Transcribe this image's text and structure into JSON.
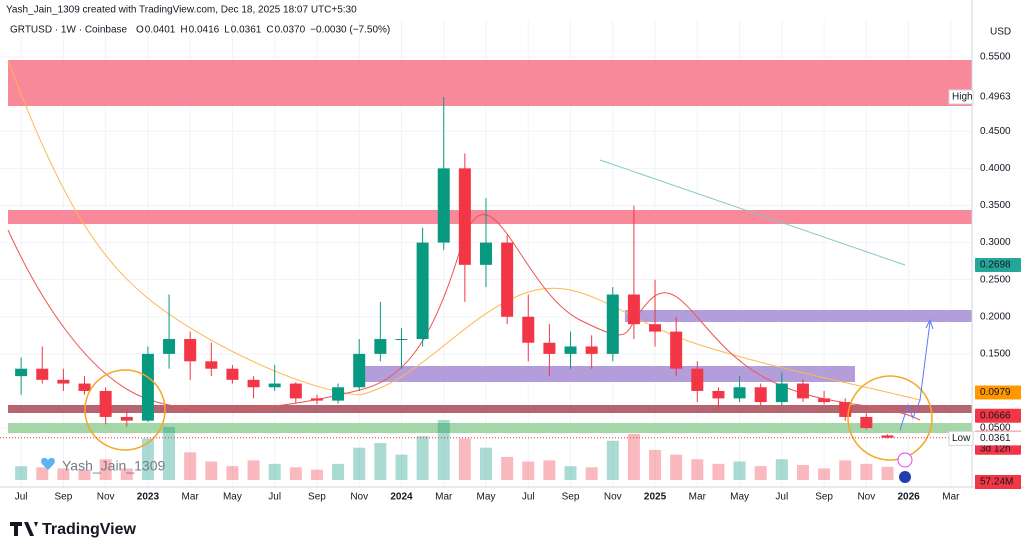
{
  "chart_data": {
    "type": "candlestick",
    "author_line": "Yash_Jain_1309 created with TradingView.com, Dec 18, 2025 18:07 UTC+5:30",
    "symbol": "GRTUSD · 1W · Coinbase",
    "ohlc": [
      {
        "prefix": "O",
        "label": "0.0401"
      },
      {
        "prefix": "H",
        "label": "0.0416"
      },
      {
        "prefix": "L",
        "label": "0.0361"
      },
      {
        "prefix": "C",
        "label": "0.0370"
      }
    ],
    "change": "−0.0030 (−7.50%)",
    "currency": "USD",
    "watermark": "Yash_Jain_1309",
    "brand": "TradingView",
    "up_color": "#089981",
    "down_color": "#f23645",
    "x": [
      "2022-07",
      "2022-08",
      "2022-09",
      "2022-10",
      "2022-11",
      "2022-12",
      "2023-01",
      "2023-02",
      "2023-03",
      "2023-04",
      "2023-05",
      "2023-06",
      "2023-07",
      "2023-08",
      "2023-09",
      "2023-10",
      "2023-11",
      "2023-12",
      "2024-01",
      "2024-02",
      "2024-03",
      "2024-04",
      "2024-05",
      "2024-06",
      "2024-07",
      "2024-08",
      "2024-09",
      "2024-10",
      "2024-11",
      "2024-12",
      "2025-01",
      "2025-02",
      "2025-03",
      "2025-04",
      "2025-05",
      "2025-06",
      "2025-07",
      "2025-08",
      "2025-09",
      "2025-10",
      "2025-11",
      "2025-12"
    ],
    "open": [
      0.12,
      0.13,
      0.115,
      0.11,
      0.1,
      0.065,
      0.06,
      0.15,
      0.17,
      0.14,
      0.13,
      0.115,
      0.105,
      0.11,
      0.09,
      0.087,
      0.105,
      0.15,
      0.17,
      0.17,
      0.3,
      0.4,
      0.27,
      0.3,
      0.2,
      0.165,
      0.15,
      0.16,
      0.15,
      0.23,
      0.19,
      0.18,
      0.13,
      0.1,
      0.09,
      0.105,
      0.085,
      0.11,
      0.09,
      0.085,
      0.065,
      0.0401
    ],
    "high": [
      0.145,
      0.16,
      0.13,
      0.12,
      0.105,
      0.075,
      0.16,
      0.23,
      0.18,
      0.165,
      0.135,
      0.12,
      0.135,
      0.112,
      0.095,
      0.11,
      0.17,
      0.22,
      0.185,
      0.32,
      0.4963,
      0.42,
      0.36,
      0.31,
      0.23,
      0.19,
      0.18,
      0.175,
      0.24,
      0.35,
      0.25,
      0.2,
      0.14,
      0.105,
      0.12,
      0.11,
      0.125,
      0.115,
      0.1,
      0.09,
      0.07,
      0.0416
    ],
    "low": [
      0.095,
      0.11,
      0.1,
      0.095,
      0.055,
      0.052,
      0.058,
      0.13,
      0.115,
      0.12,
      0.11,
      0.09,
      0.1,
      0.083,
      0.082,
      0.083,
      0.1,
      0.14,
      0.13,
      0.16,
      0.29,
      0.22,
      0.24,
      0.19,
      0.14,
      0.12,
      0.13,
      0.13,
      0.14,
      0.17,
      0.16,
      0.12,
      0.085,
      0.075,
      0.085,
      0.08,
      0.08,
      0.085,
      0.082,
      0.06,
      0.048,
      0.0361
    ],
    "close": [
      0.13,
      0.115,
      0.11,
      0.1,
      0.065,
      0.06,
      0.15,
      0.17,
      0.14,
      0.13,
      0.115,
      0.105,
      0.11,
      0.09,
      0.087,
      0.105,
      0.15,
      0.17,
      0.17,
      0.3,
      0.4,
      0.27,
      0.3,
      0.2,
      0.165,
      0.15,
      0.16,
      0.15,
      0.23,
      0.19,
      0.18,
      0.13,
      0.1,
      0.09,
      0.105,
      0.085,
      0.11,
      0.09,
      0.085,
      0.065,
      0.05,
      0.037
    ],
    "volume": [
      60,
      55,
      50,
      45,
      90,
      50,
      180,
      230,
      120,
      80,
      60,
      85,
      70,
      55,
      45,
      70,
      140,
      160,
      110,
      190,
      260,
      180,
      140,
      100,
      80,
      85,
      60,
      55,
      170,
      200,
      130,
      110,
      90,
      70,
      80,
      60,
      90,
      65,
      50,
      85,
      70,
      57.24
    ],
    "xlim": [
      "2022-06",
      "2026-04"
    ],
    "xticks": [
      {
        "value": "2022-07",
        "label": "Jul"
      },
      {
        "value": "2022-09",
        "label": "Sep"
      },
      {
        "value": "2022-11",
        "label": "Nov"
      },
      {
        "value": "2023-01",
        "label": "2023"
      },
      {
        "value": "2023-03",
        "label": "Mar"
      },
      {
        "value": "2023-05",
        "label": "May"
      },
      {
        "value": "2023-07",
        "label": "Jul"
      },
      {
        "value": "2023-09",
        "label": "Sep"
      },
      {
        "value": "2023-11",
        "label": "Nov"
      },
      {
        "value": "2024-01",
        "label": "2024"
      },
      {
        "value": "2024-03",
        "label": "Mar"
      },
      {
        "value": "2024-05",
        "label": "May"
      },
      {
        "value": "2024-07",
        "label": "Jul"
      },
      {
        "value": "2024-09",
        "label": "Sep"
      },
      {
        "value": "2024-11",
        "label": "Nov"
      },
      {
        "value": "2025-01",
        "label": "2025"
      },
      {
        "value": "2025-03",
        "label": "Mar"
      },
      {
        "value": "2025-05",
        "label": "May"
      },
      {
        "value": "2025-07",
        "label": "Jul"
      },
      {
        "value": "2025-09",
        "label": "Sep"
      },
      {
        "value": "2025-11",
        "label": "Nov"
      },
      {
        "value": "2026-01",
        "label": "2026"
      },
      {
        "value": "2026-03",
        "label": "Mar"
      }
    ],
    "ylim": [
      -0.02,
      0.6
    ],
    "yticks": [
      {
        "value": 0.55,
        "label": "0.5500"
      },
      {
        "value": 0.45,
        "label": "0.4500"
      },
      {
        "value": 0.4,
        "label": "0.4000"
      },
      {
        "value": 0.35,
        "label": "0.3500"
      },
      {
        "value": 0.3,
        "label": "0.3000"
      },
      {
        "value": 0.25,
        "label": "0.2500"
      },
      {
        "value": 0.2,
        "label": "0.2000"
      },
      {
        "value": 0.15,
        "label": "0.1500"
      },
      {
        "value": 0.05,
        "label": "0.0500"
      }
    ],
    "price_tags": [
      {
        "prefix": "High",
        "value": 0.4963,
        "label": "0.4963",
        "color": "#ffffff",
        "text_color": "#131722"
      },
      {
        "value": 0.2698,
        "label": "0.2698",
        "color": "#26a69a",
        "text_color": "#ffffff"
      },
      {
        "value": 0.0979,
        "label": "0.0979",
        "color": "#ff9800",
        "text_color": "#ffffff"
      },
      {
        "value": 0.0666,
        "label": "0.0666",
        "color": "#f23645",
        "text_color": "#ffffff"
      },
      {
        "value": 0.037,
        "label": "0.0370",
        "sub": "3d 12h",
        "color": "#f23645",
        "text_color": "#ffffff"
      },
      {
        "prefix": "Low",
        "value": 0.0361,
        "label": "0.0361",
        "color": "#ffffff",
        "text_color": "#131722"
      }
    ],
    "volume_tag": {
      "value": 57.24,
      "label": "57.24M",
      "color": "#f23645"
    },
    "grid": true
  }
}
